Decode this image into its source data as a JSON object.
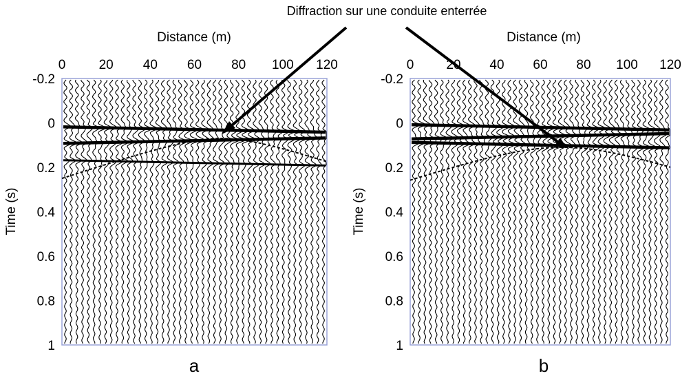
{
  "annotation": {
    "text": "Diffraction sur une conduite enterrée"
  },
  "chart_data": [
    {
      "type": "seismic-wiggle",
      "panel_label": "a",
      "xlabel": "Distance (m)",
      "ylabel": "Time (s)",
      "xlim": [
        0,
        120
      ],
      "ylim": [
        -0.2,
        1
      ],
      "y_inverted": true,
      "x_ticks": [
        "0",
        "20",
        "40",
        "60",
        "80",
        "100",
        "120"
      ],
      "y_ticks": [
        "-0.2",
        "0",
        "0.2",
        "0.4",
        "0.6",
        "0.8",
        "1"
      ],
      "reflectors_time_s": [
        0.03,
        0.08,
        0.18
      ],
      "diffraction_apex": {
        "x": 72,
        "t": 0.07
      },
      "annotation_target": {
        "x": 73,
        "t": 0.05
      }
    },
    {
      "type": "seismic-wiggle",
      "panel_label": "b",
      "xlabel": "Distance (m)",
      "ylabel": "Time (s)",
      "xlim": [
        0,
        120
      ],
      "ylim": [
        -0.2,
        1
      ],
      "y_inverted": true,
      "x_ticks": [
        "0",
        "20",
        "40",
        "60",
        "80",
        "100",
        "120"
      ],
      "y_ticks": [
        "-0.2",
        "0",
        "0.2",
        "0.4",
        "0.6",
        "0.8",
        "1"
      ],
      "reflectors_time_s": [
        0.02,
        0.06,
        0.1
      ],
      "diffraction_apex": {
        "x": 70,
        "t": 0.11
      },
      "annotation_target": {
        "x": 70,
        "t": 0.11
      }
    }
  ]
}
